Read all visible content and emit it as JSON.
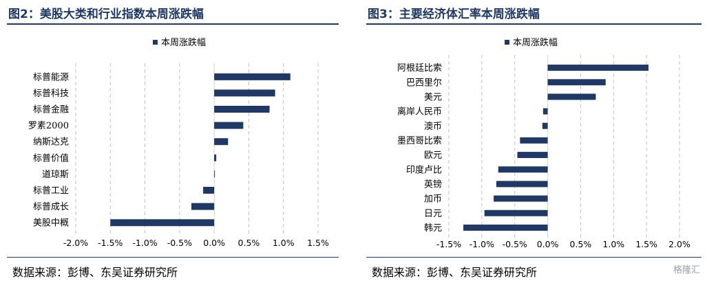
{
  "watermark": "格隆汇",
  "chart_data": [
    {
      "type": "bar",
      "orientation": "horizontal",
      "title": "图2：美股大类和行业指数本周涨跌幅",
      "legend": {
        "position": "top",
        "entries": [
          "本周涨跌幅"
        ]
      },
      "series": [
        {
          "name": "本周涨跌幅",
          "color": "#1f3864",
          "values": [
            1.1,
            0.88,
            0.8,
            0.42,
            0.2,
            0.03,
            0.01,
            -0.16,
            -0.33,
            -1.5
          ]
        }
      ],
      "categories": [
        "标普能源",
        "标普科技",
        "标普金融",
        "罗素2000",
        "纳斯达克",
        "标普价值",
        "道琼斯",
        "标普工业",
        "标普成长",
        "美股中概"
      ],
      "xlim": [
        -2.0,
        1.5
      ],
      "xticks": [
        -2.0,
        -1.5,
        -1.0,
        -0.5,
        0.0,
        0.5,
        1.0,
        1.5
      ],
      "xtick_labels": [
        "-2.0%",
        "-1.5%",
        "-1.0%",
        "-0.5%",
        "0.0%",
        "0.5%",
        "1.0%",
        "1.5%"
      ],
      "grid": "vertical dashed",
      "source": "数据来源：彭博、东吴证券研究所"
    },
    {
      "type": "bar",
      "orientation": "horizontal",
      "title": "图3：主要经济体汇率本周涨跌幅",
      "legend": {
        "position": "top",
        "entries": [
          "本周涨跌幅"
        ]
      },
      "series": [
        {
          "name": "本周涨跌幅",
          "color": "#1f3864",
          "values": [
            1.53,
            0.88,
            0.73,
            -0.07,
            -0.08,
            -0.42,
            -0.46,
            -0.75,
            -0.78,
            -0.82,
            -0.96,
            -1.28
          ]
        }
      ],
      "categories": [
        "阿根廷比索",
        "巴西里尔",
        "美元",
        "离岸人民币",
        "澳币",
        "墨西哥比索",
        "欧元",
        "印度卢比",
        "英镑",
        "加币",
        "日元",
        "韩元"
      ],
      "xlim": [
        -1.5,
        2.0
      ],
      "xticks": [
        -1.5,
        -1.0,
        -0.5,
        0.0,
        0.5,
        1.0,
        1.5,
        2.0
      ],
      "xtick_labels": [
        "-1.5%",
        "-1.0%",
        "-0.5%",
        "0.0%",
        "0.5%",
        "1.0%",
        "1.5%",
        "2.0%"
      ],
      "grid": "vertical dashed",
      "source": "数据来源：彭博、东吴证券研究所"
    }
  ]
}
